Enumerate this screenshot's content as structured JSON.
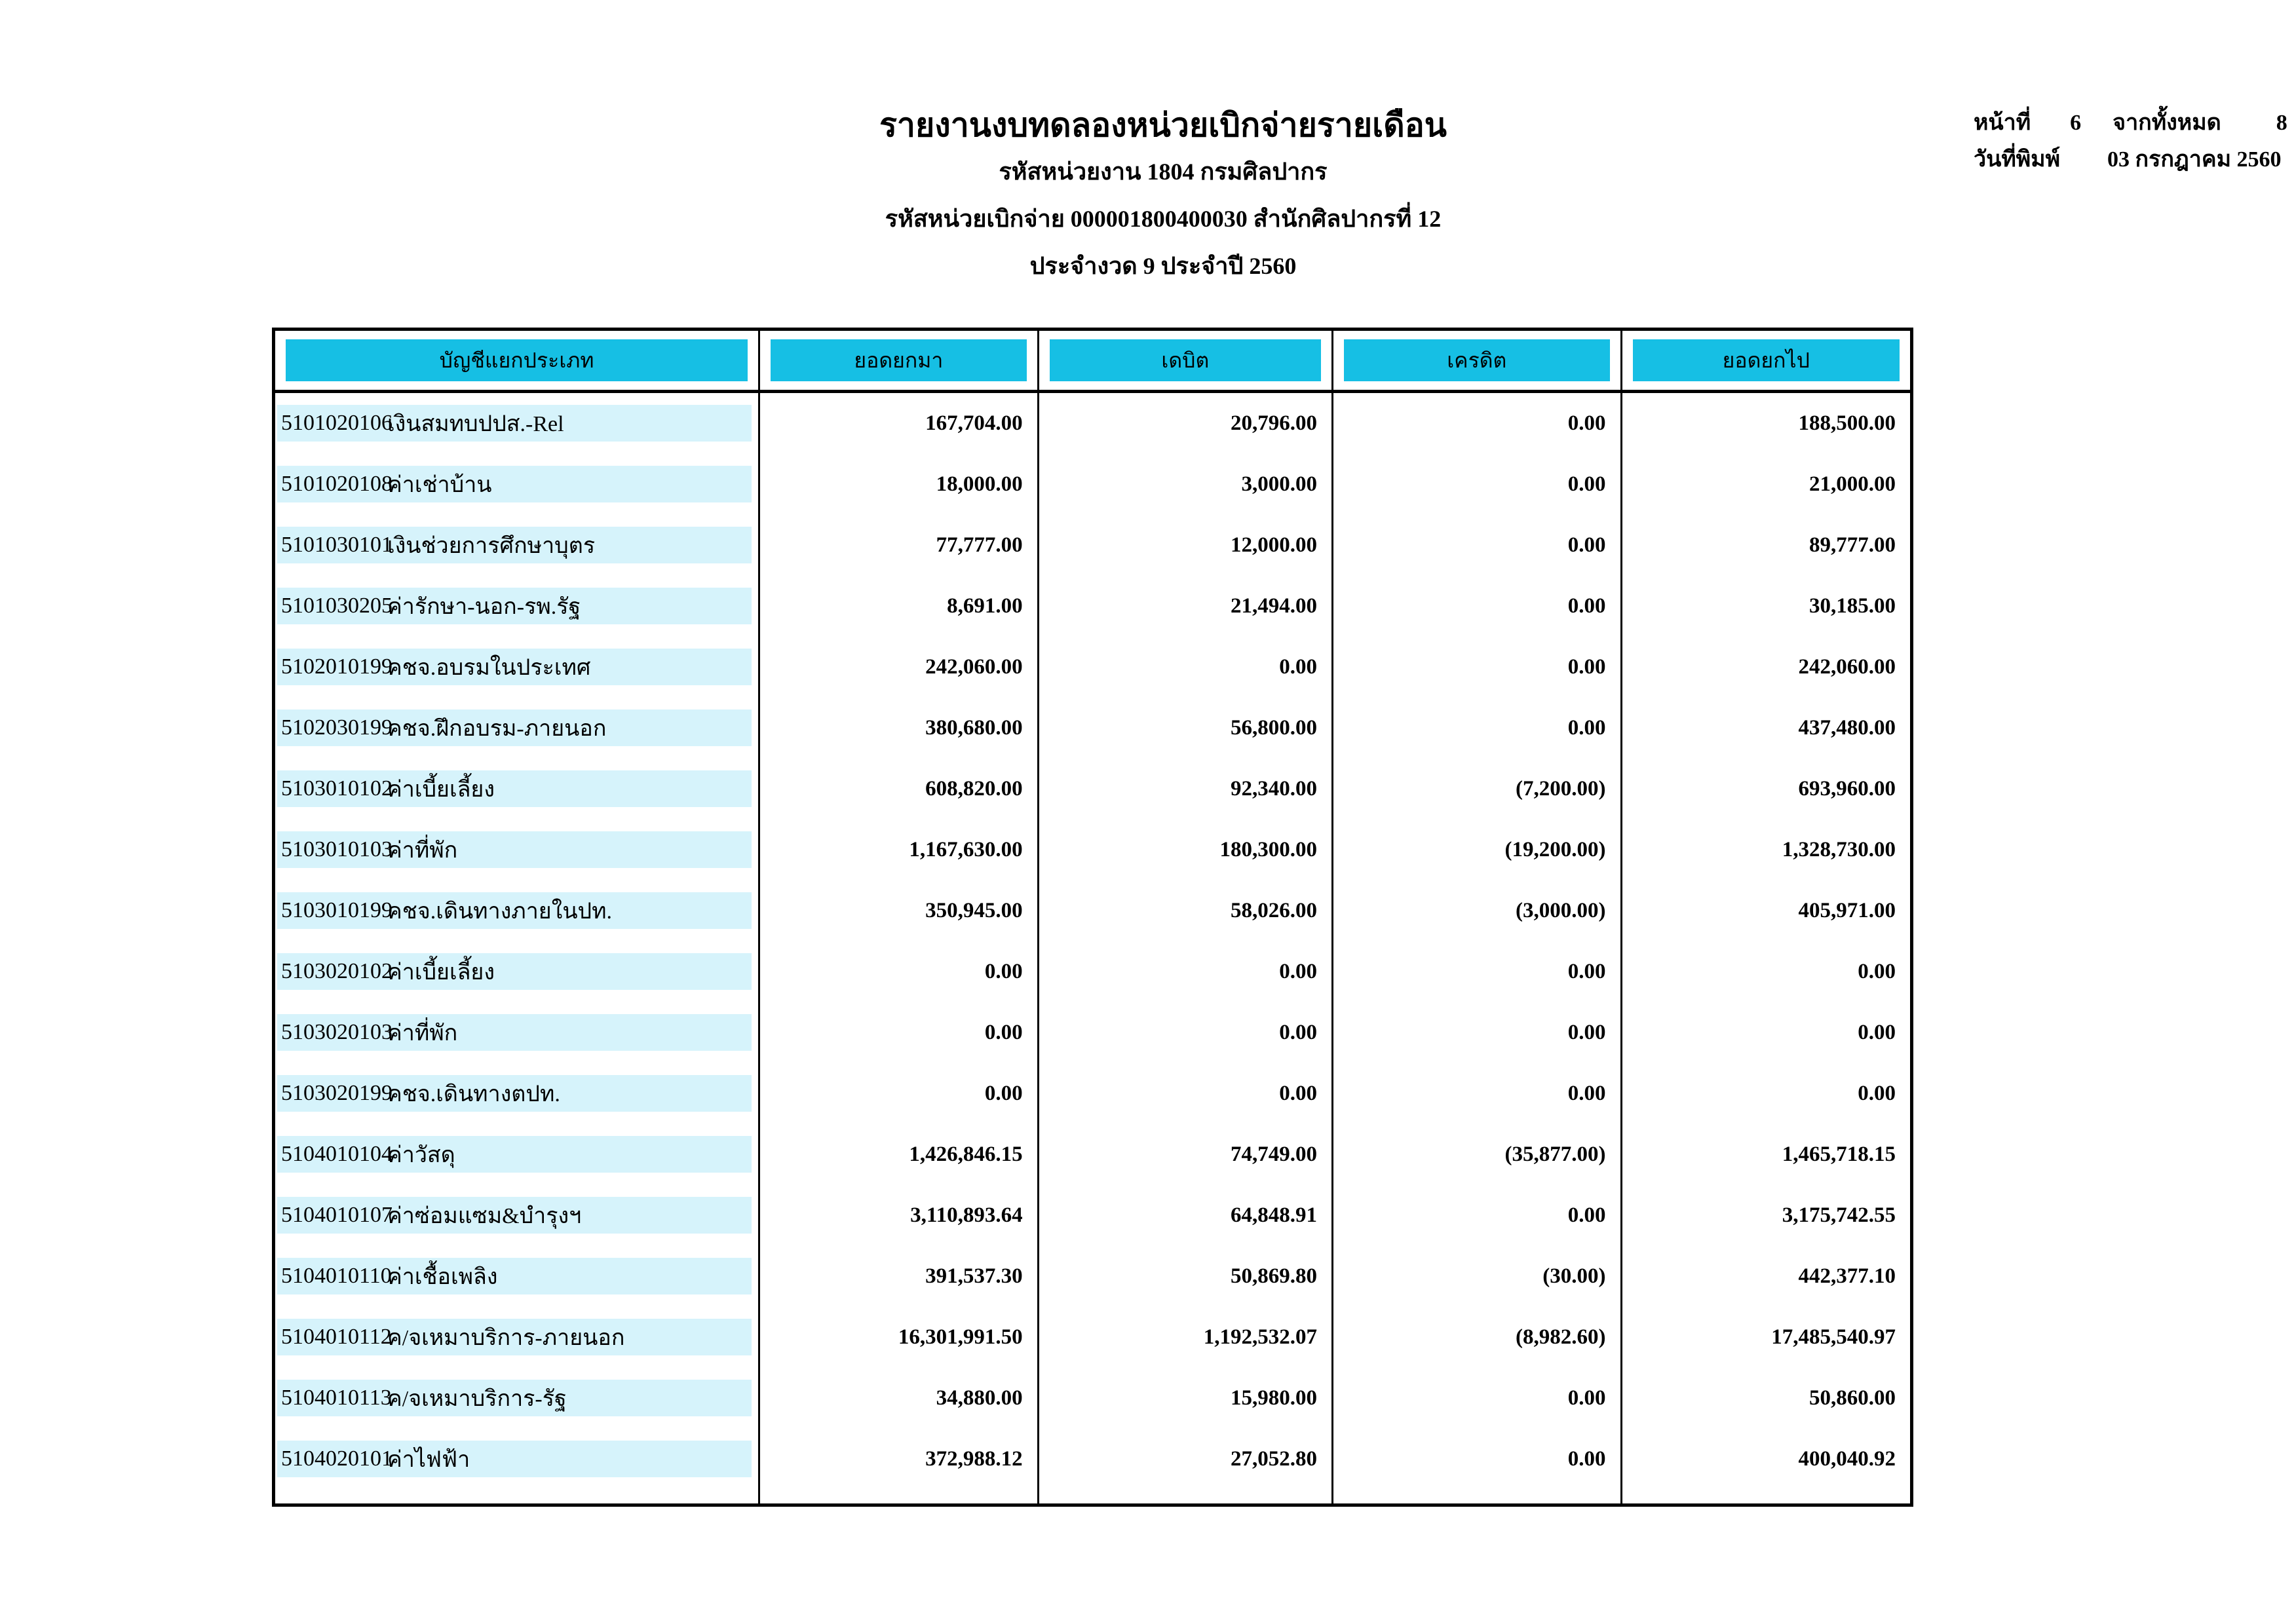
{
  "page_header": {
    "title": "รายงานงบทดลองหน่วยเบิกจ่ายรายเดือน",
    "agency_line": "รหัสหน่วยงาน 1804 กรมศิลปากร",
    "disbursement_line": "รหัสหน่วยเบิกจ่าย 000001800400030 สำนักศิลปากรที่ 12",
    "period_line": "ประจำงวด 9 ประจำปี 2560",
    "page_label": "หน้าที่",
    "page_number": "6",
    "of_label": "จากทั้งหมด",
    "total_pages": "8",
    "print_date_label": "วันที่พิมพ์",
    "print_date": "03 กรกฎาคม 2560"
  },
  "colors": {
    "header_cell_cyan": "#16BFE4",
    "row_stripe_cyan": "#D6F3FB"
  },
  "table": {
    "columns": [
      "บัญชีแยกประเภท",
      "ยอดยกมา",
      "เดบิต",
      "เครดิต",
      "ยอดยกไป"
    ],
    "rows": [
      {
        "code": "5101020106",
        "name": "เงินสมทบปปส.-Rel",
        "carry_forward_in": "167,704.00",
        "debit": "20,796.00",
        "credit": "0.00",
        "carry_forward_out": "188,500.00"
      },
      {
        "code": "5101020108",
        "name": "ค่าเช่าบ้าน",
        "carry_forward_in": "18,000.00",
        "debit": "3,000.00",
        "credit": "0.00",
        "carry_forward_out": "21,000.00"
      },
      {
        "code": "5101030101",
        "name": "เงินช่วยการศึกษาบุตร",
        "carry_forward_in": "77,777.00",
        "debit": "12,000.00",
        "credit": "0.00",
        "carry_forward_out": "89,777.00"
      },
      {
        "code": "5101030205",
        "name": "ค่ารักษา-นอก-รพ.รัฐ",
        "carry_forward_in": "8,691.00",
        "debit": "21,494.00",
        "credit": "0.00",
        "carry_forward_out": "30,185.00"
      },
      {
        "code": "5102010199",
        "name": "คชจ.อบรมในประเทศ",
        "carry_forward_in": "242,060.00",
        "debit": "0.00",
        "credit": "0.00",
        "carry_forward_out": "242,060.00"
      },
      {
        "code": "5102030199",
        "name": "คชจ.ฝึกอบรม-ภายนอก",
        "carry_forward_in": "380,680.00",
        "debit": "56,800.00",
        "credit": "0.00",
        "carry_forward_out": "437,480.00"
      },
      {
        "code": "5103010102",
        "name": "ค่าเบี้ยเลี้ยง",
        "carry_forward_in": "608,820.00",
        "debit": "92,340.00",
        "credit": "(7,200.00)",
        "carry_forward_out": "693,960.00"
      },
      {
        "code": "5103010103",
        "name": "ค่าที่พัก",
        "carry_forward_in": "1,167,630.00",
        "debit": "180,300.00",
        "credit": "(19,200.00)",
        "carry_forward_out": "1,328,730.00"
      },
      {
        "code": "5103010199",
        "name": "คชจ.เดินทางภายในปท.",
        "carry_forward_in": "350,945.00",
        "debit": "58,026.00",
        "credit": "(3,000.00)",
        "carry_forward_out": "405,971.00"
      },
      {
        "code": "5103020102",
        "name": "ค่าเบี้ยเลี้ยง",
        "carry_forward_in": "0.00",
        "debit": "0.00",
        "credit": "0.00",
        "carry_forward_out": "0.00"
      },
      {
        "code": "5103020103",
        "name": "ค่าที่พัก",
        "carry_forward_in": "0.00",
        "debit": "0.00",
        "credit": "0.00",
        "carry_forward_out": "0.00"
      },
      {
        "code": "5103020199",
        "name": "คชจ.เดินทางตปท.",
        "carry_forward_in": "0.00",
        "debit": "0.00",
        "credit": "0.00",
        "carry_forward_out": "0.00"
      },
      {
        "code": "5104010104",
        "name": "ค่าวัสดุ",
        "carry_forward_in": "1,426,846.15",
        "debit": "74,749.00",
        "credit": "(35,877.00)",
        "carry_forward_out": "1,465,718.15"
      },
      {
        "code": "5104010107",
        "name": "ค่าซ่อมแซม&บำรุงฯ",
        "carry_forward_in": "3,110,893.64",
        "debit": "64,848.91",
        "credit": "0.00",
        "carry_forward_out": "3,175,742.55"
      },
      {
        "code": "5104010110",
        "name": "ค่าเชื้อเพลิง",
        "carry_forward_in": "391,537.30",
        "debit": "50,869.80",
        "credit": "(30.00)",
        "carry_forward_out": "442,377.10"
      },
      {
        "code": "5104010112",
        "name": "ค/จเหมาบริการ-ภายนอก",
        "carry_forward_in": "16,301,991.50",
        "debit": "1,192,532.07",
        "credit": "(8,982.60)",
        "carry_forward_out": "17,485,540.97"
      },
      {
        "code": "5104010113",
        "name": "ค/จเหมาบริการ-รัฐ",
        "carry_forward_in": "34,880.00",
        "debit": "15,980.00",
        "credit": "0.00",
        "carry_forward_out": "50,860.00"
      },
      {
        "code": "5104020101",
        "name": "ค่าไฟฟ้า",
        "carry_forward_in": "372,988.12",
        "debit": "27,052.80",
        "credit": "0.00",
        "carry_forward_out": "400,040.92"
      }
    ]
  }
}
